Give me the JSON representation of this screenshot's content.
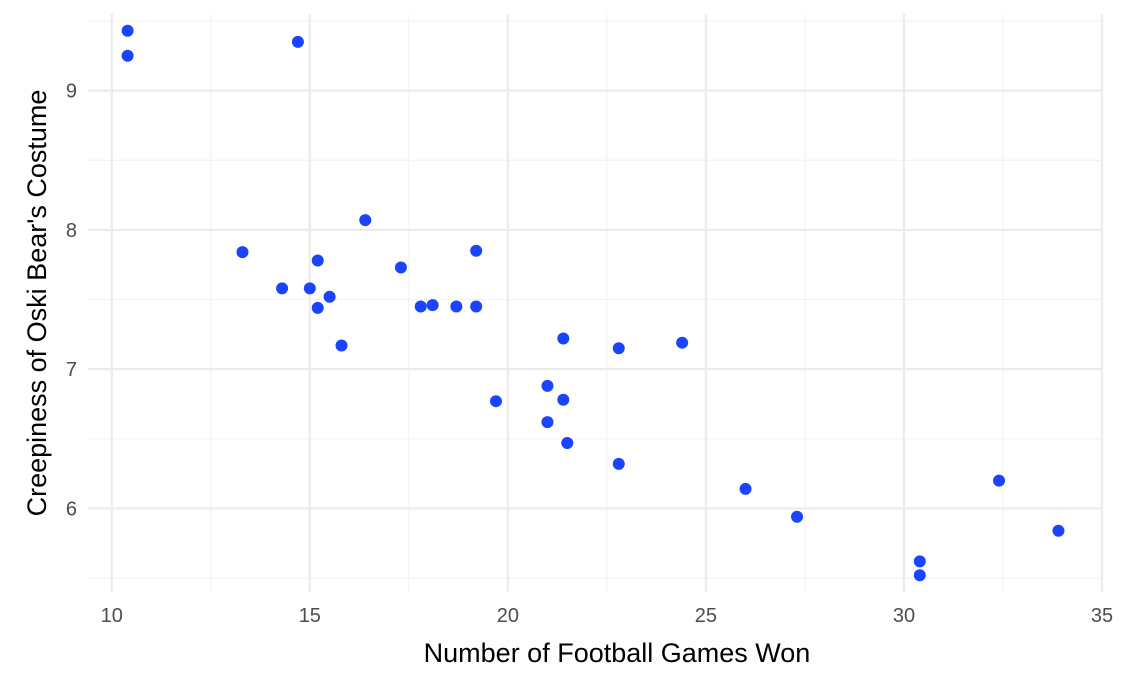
{
  "chart_data": {
    "type": "scatter",
    "title": "",
    "xlabel": "Number of Football Games Won",
    "ylabel": "Creepiness of Oski Bear's Costume",
    "xlim": [
      9.4,
      35.0
    ],
    "ylim": [
      5.4,
      9.55
    ],
    "x_ticks": [
      10,
      15,
      20,
      25,
      30,
      35
    ],
    "y_ticks": [
      6,
      7,
      8,
      9
    ],
    "x_tick_labels": [
      "10",
      "15",
      "20",
      "25",
      "30",
      "35"
    ],
    "y_tick_labels": [
      "6",
      "7",
      "8",
      "9"
    ],
    "x_minor_ticks": [
      12.5,
      17.5,
      22.5,
      27.5,
      32.5
    ],
    "y_minor_ticks": [
      5.5,
      6.5,
      7.5,
      8.5,
      9.5
    ],
    "grid": true,
    "point_color": "#1a44ff",
    "points": [
      {
        "x": 10.4,
        "y": 9.43
      },
      {
        "x": 10.4,
        "y": 9.25
      },
      {
        "x": 14.7,
        "y": 9.35
      },
      {
        "x": 13.3,
        "y": 7.84
      },
      {
        "x": 14.3,
        "y": 7.58
      },
      {
        "x": 15.0,
        "y": 7.58
      },
      {
        "x": 15.2,
        "y": 7.78
      },
      {
        "x": 15.2,
        "y": 7.44
      },
      {
        "x": 15.5,
        "y": 7.52
      },
      {
        "x": 15.8,
        "y": 7.17
      },
      {
        "x": 16.4,
        "y": 8.07
      },
      {
        "x": 17.3,
        "y": 7.73
      },
      {
        "x": 17.8,
        "y": 7.45
      },
      {
        "x": 18.1,
        "y": 7.46
      },
      {
        "x": 18.7,
        "y": 7.45
      },
      {
        "x": 19.2,
        "y": 7.45
      },
      {
        "x": 19.2,
        "y": 7.85
      },
      {
        "x": 19.7,
        "y": 6.77
      },
      {
        "x": 21.0,
        "y": 6.88
      },
      {
        "x": 21.0,
        "y": 6.62
      },
      {
        "x": 21.4,
        "y": 7.22
      },
      {
        "x": 21.4,
        "y": 6.78
      },
      {
        "x": 21.5,
        "y": 6.47
      },
      {
        "x": 22.8,
        "y": 7.15
      },
      {
        "x": 22.8,
        "y": 6.32
      },
      {
        "x": 24.4,
        "y": 7.19
      },
      {
        "x": 26.0,
        "y": 6.14
      },
      {
        "x": 27.3,
        "y": 5.94
      },
      {
        "x": 30.4,
        "y": 5.62
      },
      {
        "x": 30.4,
        "y": 5.52
      },
      {
        "x": 32.4,
        "y": 6.2
      },
      {
        "x": 33.9,
        "y": 5.84
      }
    ]
  }
}
